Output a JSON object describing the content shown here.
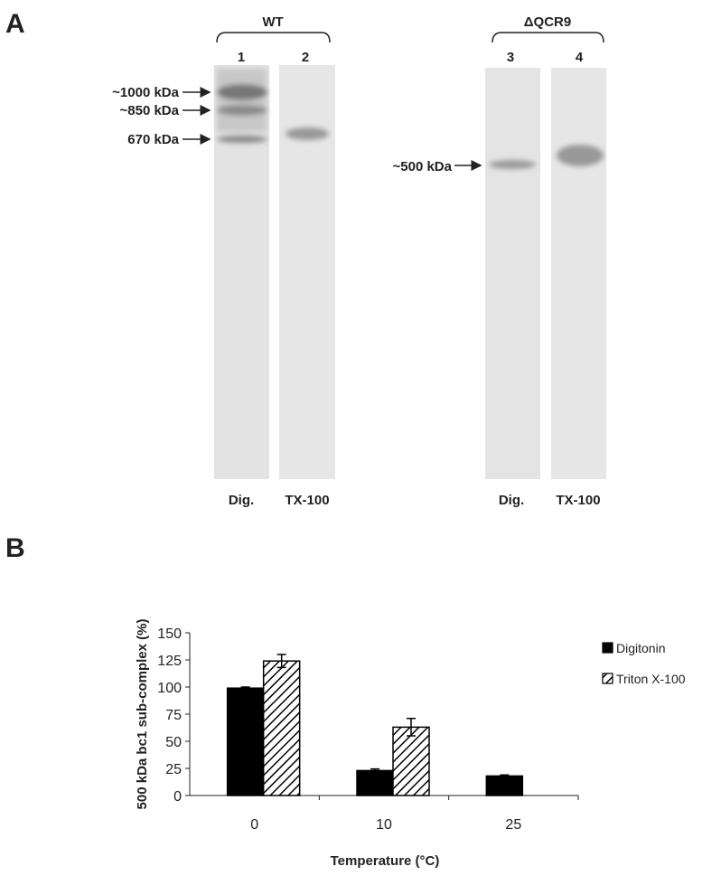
{
  "panel_a": {
    "label": "A",
    "groups": [
      {
        "name": "WT",
        "lanes": [
          {
            "number": "1",
            "label": "Dig."
          },
          {
            "number": "2",
            "label": "TX-100"
          }
        ]
      },
      {
        "name": "ΔQCR9",
        "lanes": [
          {
            "number": "3",
            "label": "Dig."
          },
          {
            "number": "4",
            "label": "TX-100"
          }
        ]
      }
    ],
    "markers": [
      "~1000 kDa",
      "~850 kDa",
      "670 kDa",
      "~500 kDa"
    ]
  },
  "panel_b": {
    "label": "B"
  },
  "chart_data": {
    "type": "bar",
    "categories": [
      "0",
      "10",
      "25"
    ],
    "series": [
      {
        "name": "Digitonin",
        "color": "#000000",
        "values": [
          99,
          23,
          18
        ],
        "errors": [
          1,
          1.5,
          1
        ]
      },
      {
        "name": "Triton X-100",
        "color": "hatch",
        "values": [
          124,
          63,
          null
        ],
        "errors": [
          6,
          8,
          null
        ]
      }
    ],
    "ylim": [
      0,
      150
    ],
    "yticks": [
      0,
      25,
      50,
      75,
      100,
      125,
      150
    ],
    "y_label": "500 kDa bc1 sub-complex (%)",
    "x_label": "Temperature (°C)",
    "legend": "right",
    "grid": false
  }
}
